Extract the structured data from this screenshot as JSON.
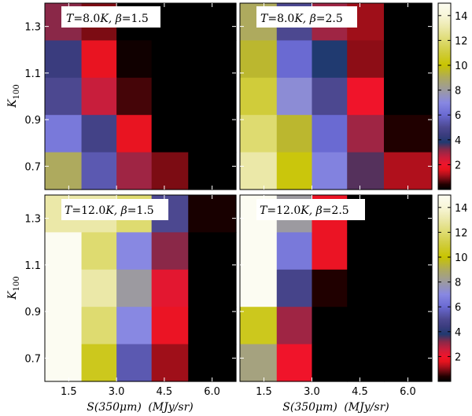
{
  "colors": {
    "colormap": [
      [
        0,
        "#000000"
      ],
      [
        0.4,
        "#200000"
      ],
      [
        0.8,
        "#6a0a10"
      ],
      [
        1.2,
        "#b0101c"
      ],
      [
        1.6,
        "#e6141e"
      ],
      [
        2.0,
        "#f0142a"
      ],
      [
        2.6,
        "#c81e3c"
      ],
      [
        3.2,
        "#8a2848"
      ],
      [
        3.8,
        "#203a70"
      ],
      [
        4.4,
        "#3a3c7e"
      ],
      [
        5.0,
        "#4c4890"
      ],
      [
        6.0,
        "#6a6ad2"
      ],
      [
        7.0,
        "#8888e2"
      ],
      [
        8.0,
        "#9c9aa0"
      ],
      [
        9.0,
        "#aeaa5e"
      ],
      [
        10.0,
        "#c8c400"
      ],
      [
        11.0,
        "#d0cc3a"
      ],
      [
        12.0,
        "#dedb70"
      ],
      [
        13.0,
        "#ebe8a8"
      ],
      [
        14.0,
        "#f8f6d8"
      ],
      [
        15.0,
        "#fcfcf2"
      ]
    ]
  },
  "axes": {
    "xlabel": "S(350μm) (MJy/sr)",
    "ylabel": "K100",
    "xticks": [
      "1.5",
      "3.0",
      "4.5",
      "6.0"
    ],
    "yticks": [
      "0.7",
      "0.9",
      "1.1",
      "1.3"
    ]
  },
  "colorbar": {
    "ticks": [
      "2",
      "4",
      "6",
      "8",
      "10",
      "12",
      "14"
    ]
  },
  "chart_data": [
    {
      "type": "heatmap",
      "title": "T=8.0K, β=1.5",
      "label_T": "T",
      "label_Tval": "=8.0",
      "label_K": "K, ",
      "label_beta": "β",
      "label_bval": "=1.5",
      "x": [
        1.5,
        3.0,
        4.5,
        6.0,
        7.5
      ],
      "y": [
        1.4,
        1.3,
        1.1,
        1.0,
        0.8,
        0.7
      ],
      "xlim": [
        0.75,
        6.75
      ],
      "ylim": [
        0.6,
        1.4
      ],
      "z_rows_top_to_bottom": [
        [
          3.2,
          0.9,
          0.0,
          0.0,
          0.0
        ],
        [
          4.4,
          1.7,
          0.2,
          0.0,
          0.0
        ],
        [
          5.0,
          2.6,
          0.6,
          0.0,
          0.0
        ],
        [
          6.5,
          4.7,
          1.7,
          0.0,
          0.0
        ],
        [
          9.0,
          5.5,
          3.0,
          0.9,
          0.0
        ]
      ]
    },
    {
      "type": "heatmap",
      "title": "T=8.0K, β=2.5",
      "label_T": "T",
      "label_Tval": "=8.0",
      "label_K": "K, ",
      "label_beta": "β",
      "label_bval": "=2.5",
      "x": [
        1.5,
        3.0,
        4.5,
        6.0,
        7.5
      ],
      "z_rows_top_to_bottom": [
        [
          9.0,
          5.0,
          3.0,
          1.1,
          0.0
        ],
        [
          9.5,
          6.0,
          3.8,
          1.0,
          0.0
        ],
        [
          11.0,
          7.2,
          5.0,
          2.0,
          0.0
        ],
        [
          12.0,
          9.5,
          6.0,
          3.0,
          0.4
        ],
        [
          13.0,
          10.2,
          6.8,
          3.5,
          1.2
        ]
      ]
    },
    {
      "type": "heatmap",
      "title": "T=12.0K, β=1.5",
      "label_T": "T",
      "label_Tval": "=12.0",
      "label_K": "K, ",
      "label_beta": "β",
      "label_bval": "=1.5",
      "x": [
        1.5,
        3.0,
        4.5,
        6.0,
        7.5
      ],
      "z_rows_top_to_bottom": [
        [
          13.0,
          13.0,
          12.0,
          5.0,
          0.3
        ],
        [
          15.0,
          12.0,
          7.0,
          3.2,
          0.0
        ],
        [
          15.0,
          13.0,
          8.0,
          2.2,
          0.0
        ],
        [
          15.0,
          12.0,
          7.0,
          1.8,
          0.0
        ],
        [
          15.0,
          10.5,
          5.5,
          1.1,
          0.0
        ]
      ]
    },
    {
      "type": "heatmap",
      "title": "T=12.0K, β=2.5",
      "label_T": "T",
      "label_Tval": "=12.0",
      "label_K": "K, ",
      "label_beta": "β",
      "label_bval": "=2.5",
      "x": [
        1.5,
        3.0,
        4.5,
        6.0,
        7.5
      ],
      "z_rows_top_to_bottom": [
        [
          15.0,
          8.0,
          1.8,
          0.0,
          0.0
        ],
        [
          15.0,
          6.5,
          1.8,
          0.0,
          0.0
        ],
        [
          15.0,
          4.8,
          0.4,
          0.0,
          0.0
        ],
        [
          10.5,
          3.0,
          0.0,
          0.0,
          0.0
        ],
        [
          8.5,
          2.0,
          0.0,
          0.0,
          0.0
        ]
      ]
    }
  ]
}
